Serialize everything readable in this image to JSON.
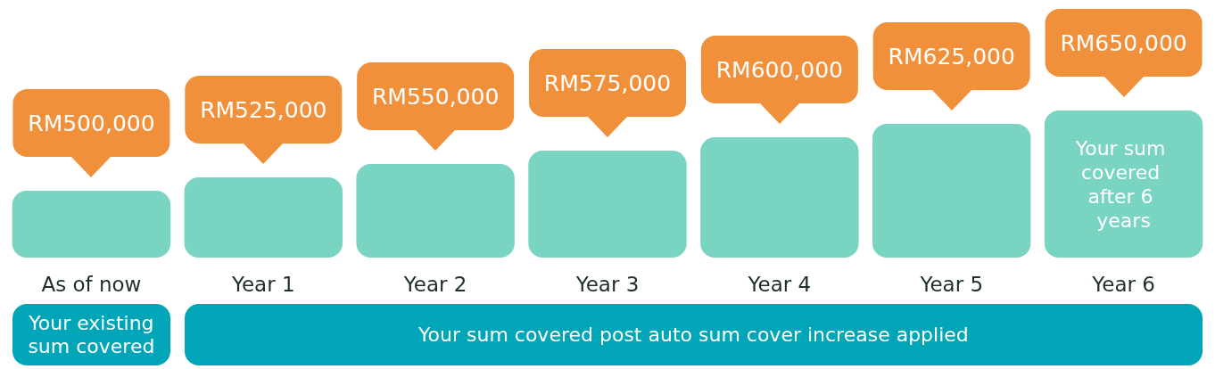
{
  "chart_data": {
    "type": "bar",
    "categories": [
      "As of now",
      "Year 1",
      "Year 2",
      "Year 3",
      "Year 4",
      "Year 5",
      "Year 6"
    ],
    "values": [
      500000,
      525000,
      550000,
      575000,
      600000,
      625000,
      650000
    ],
    "value_labels": [
      "RM500,000",
      "RM525,000",
      "RM550,000",
      "RM575,000",
      "RM600,000",
      "RM625,000",
      "RM650,000"
    ],
    "color": "#79d5c1",
    "ylim": [
      375000,
      650000
    ],
    "tick_labels": "x",
    "annotations": [
      "Your sum covered after 6 years",
      "Your existing sum covered",
      "Your sum covered post auto sum cover increase applied"
    ]
  }
}
